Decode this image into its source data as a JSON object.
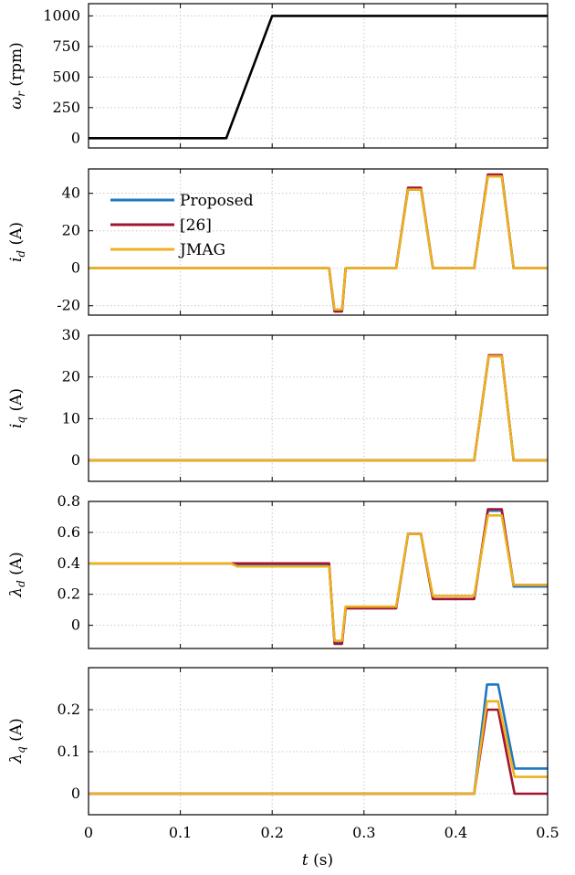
{
  "chart_data": {
    "type": "line",
    "xlabel": "t (s)",
    "xlim": [
      0,
      0.5
    ],
    "xticks": [
      "0",
      "0.1",
      "0.2",
      "0.3",
      "0.4",
      "0.5"
    ],
    "grid": true,
    "legend": {
      "placement": "top-left of i_d panel",
      "entries": [
        {
          "name": "Proposed",
          "color": "#1f77c0"
        },
        {
          "name": "[26]",
          "color": "#a2142f"
        },
        {
          "name": "JMAG",
          "color": "#edb120"
        }
      ]
    },
    "panels": [
      {
        "id": "speed",
        "ylabel": "ω_r (rpm)",
        "ylim": [
          -80,
          1100
        ],
        "yticks": [
          0,
          250,
          500,
          750,
          1000
        ],
        "ytick_labels": [
          "0",
          "250",
          "500",
          "750",
          "1000"
        ],
        "series": [
          {
            "name": "speed",
            "color": "#000000",
            "x": [
              0,
              0.15,
              0.2,
              0.5
            ],
            "y": [
              0,
              0,
              1000,
              1000
            ]
          }
        ]
      },
      {
        "id": "id",
        "ylabel": "i_d (A)",
        "ylim": [
          -25,
          53
        ],
        "yticks": [
          -20,
          0,
          20,
          40
        ],
        "ytick_labels": [
          "-20",
          "0",
          "20",
          "40"
        ],
        "series": [
          {
            "name": "Proposed",
            "color": "#1f77c0",
            "x": [
              0,
              0.262,
              0.268,
              0.276,
              0.28,
              0.335,
              0.348,
              0.362,
              0.375,
              0.42,
              0.435,
              0.45,
              0.463,
              0.5
            ],
            "y": [
              0,
              0,
              -23,
              -23,
              0,
              0,
              42,
              42,
              0,
              0,
              50,
              50,
              0,
              0
            ]
          },
          {
            "name": "[26]",
            "color": "#a2142f",
            "x": [
              0,
              0.262,
              0.268,
              0.276,
              0.28,
              0.335,
              0.348,
              0.362,
              0.375,
              0.42,
              0.435,
              0.45,
              0.463,
              0.5
            ],
            "y": [
              0,
              0,
              -23,
              -23,
              0,
              0,
              43,
              43,
              0,
              0,
              50,
              50,
              0,
              0
            ]
          },
          {
            "name": "JMAG",
            "color": "#edb120",
            "x": [
              0,
              0.262,
              0.268,
              0.276,
              0.28,
              0.335,
              0.348,
              0.362,
              0.375,
              0.42,
              0.435,
              0.45,
              0.463,
              0.5
            ],
            "y": [
              0,
              0,
              -22,
              -22,
              0,
              0,
              42,
              42,
              0,
              0,
              49,
              49,
              0,
              0
            ]
          }
        ]
      },
      {
        "id": "iq",
        "ylabel": "i_q (A)",
        "ylim": [
          -5,
          30
        ],
        "yticks": [
          0,
          10,
          20,
          30
        ],
        "ytick_labels": [
          "0",
          "10",
          "20",
          "30"
        ],
        "series": [
          {
            "name": "Proposed",
            "color": "#1f77c0",
            "x": [
              0,
              0.42,
              0.436,
              0.45,
              0.463,
              0.5
            ],
            "y": [
              0,
              0,
              25,
              25,
              0,
              0
            ]
          },
          {
            "name": "[26]",
            "color": "#a2142f",
            "x": [
              0,
              0.42,
              0.436,
              0.45,
              0.463,
              0.5
            ],
            "y": [
              0,
              0,
              25.2,
              25.2,
              0,
              0
            ]
          },
          {
            "name": "JMAG",
            "color": "#edb120",
            "x": [
              0,
              0.42,
              0.436,
              0.45,
              0.463,
              0.5
            ],
            "y": [
              0,
              0,
              25,
              25,
              0,
              0
            ]
          }
        ]
      },
      {
        "id": "lambda_d",
        "ylabel": "λ_d (A)",
        "ylim": [
          -0.15,
          0.8
        ],
        "yticks": [
          0,
          0.2,
          0.4,
          0.6,
          0.8
        ],
        "ytick_labels": [
          "0",
          "0.2",
          "0.4",
          "0.6",
          "0.8"
        ],
        "series": [
          {
            "name": "Proposed",
            "color": "#1f77c0",
            "x": [
              0,
              0.155,
              0.162,
              0.262,
              0.268,
              0.276,
              0.28,
              0.335,
              0.348,
              0.362,
              0.375,
              0.42,
              0.435,
              0.45,
              0.463,
              0.5
            ],
            "y": [
              0.4,
              0.4,
              0.39,
              0.39,
              -0.11,
              -0.11,
              0.11,
              0.11,
              0.59,
              0.59,
              0.17,
              0.17,
              0.74,
              0.74,
              0.25,
              0.25
            ]
          },
          {
            "name": "[26]",
            "color": "#a2142f",
            "x": [
              0,
              0.155,
              0.162,
              0.262,
              0.268,
              0.276,
              0.28,
              0.335,
              0.348,
              0.362,
              0.375,
              0.42,
              0.435,
              0.45,
              0.463,
              0.5
            ],
            "y": [
              0.4,
              0.4,
              0.4,
              0.4,
              -0.12,
              -0.12,
              0.11,
              0.11,
              0.59,
              0.59,
              0.17,
              0.17,
              0.75,
              0.75,
              0.26,
              0.26
            ]
          },
          {
            "name": "JMAG",
            "color": "#edb120",
            "x": [
              0,
              0.155,
              0.162,
              0.262,
              0.268,
              0.276,
              0.28,
              0.335,
              0.348,
              0.362,
              0.375,
              0.42,
              0.435,
              0.45,
              0.463,
              0.5
            ],
            "y": [
              0.4,
              0.4,
              0.38,
              0.38,
              -0.1,
              -0.1,
              0.12,
              0.12,
              0.59,
              0.59,
              0.19,
              0.19,
              0.71,
              0.71,
              0.26,
              0.26
            ]
          }
        ]
      },
      {
        "id": "lambda_q",
        "ylabel": "λ_q (A)",
        "ylim": [
          -0.05,
          0.3
        ],
        "yticks": [
          0,
          0.1,
          0.2
        ],
        "ytick_labels": [
          "0",
          "0.1",
          "0.2"
        ],
        "series": [
          {
            "name": "Proposed",
            "color": "#1f77c0",
            "x": [
              0,
              0.42,
              0.434,
              0.446,
              0.464,
              0.5
            ],
            "y": [
              0,
              0,
              0.26,
              0.26,
              0.06,
              0.06
            ]
          },
          {
            "name": "[26]",
            "color": "#a2142f",
            "x": [
              0,
              0.42,
              0.434,
              0.446,
              0.464,
              0.5
            ],
            "y": [
              0,
              0,
              0.2,
              0.2,
              0,
              0
            ]
          },
          {
            "name": "JMAG",
            "color": "#edb120",
            "x": [
              0,
              0.42,
              0.434,
              0.446,
              0.464,
              0.5
            ],
            "y": [
              0,
              0,
              0.22,
              0.22,
              0.04,
              0.04
            ]
          }
        ]
      }
    ]
  }
}
